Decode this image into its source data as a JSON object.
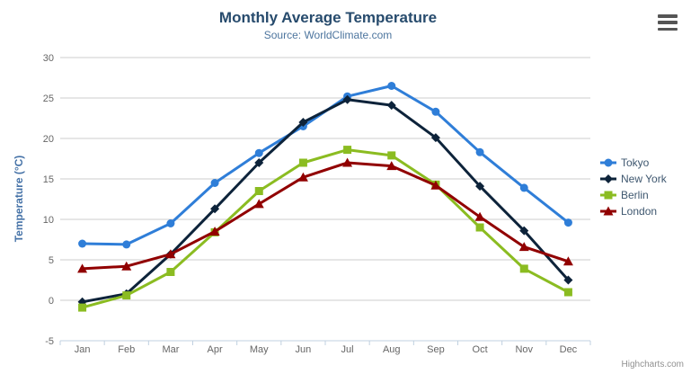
{
  "chart_data": {
    "type": "line",
    "title": "Monthly Average Temperature",
    "subtitle": "Source: WorldClimate.com",
    "categories": [
      "Jan",
      "Feb",
      "Mar",
      "Apr",
      "May",
      "Jun",
      "Jul",
      "Aug",
      "Sep",
      "Oct",
      "Nov",
      "Dec"
    ],
    "xlabel": "",
    "ylabel": "Temperature (°C)",
    "ylim": [
      -5,
      30
    ],
    "ytick_interval": 5,
    "grid": true,
    "legend_position": "right",
    "series": [
      {
        "name": "Tokyo",
        "color": "#2f7ed8",
        "marker": "circle",
        "values": [
          7.0,
          6.9,
          9.5,
          14.5,
          18.2,
          21.5,
          25.2,
          26.5,
          23.3,
          18.3,
          13.9,
          9.6
        ]
      },
      {
        "name": "New York",
        "color": "#0d233a",
        "marker": "diamond",
        "values": [
          -0.2,
          0.8,
          5.7,
          11.3,
          17.0,
          22.0,
          24.8,
          24.1,
          20.1,
          14.1,
          8.6,
          2.5
        ]
      },
      {
        "name": "Berlin",
        "color": "#8bbc21",
        "marker": "square",
        "values": [
          -0.9,
          0.6,
          3.5,
          8.4,
          13.5,
          17.0,
          18.6,
          17.9,
          14.3,
          9.0,
          3.9,
          1.0
        ]
      },
      {
        "name": "London",
        "color": "#910000",
        "marker": "triangle",
        "values": [
          3.9,
          4.2,
          5.7,
          8.5,
          11.9,
          15.2,
          17.0,
          16.6,
          14.2,
          10.3,
          6.6,
          4.8
        ]
      }
    ]
  },
  "credits_label": "Highcharts.com",
  "colors": {
    "title": "#274b6d",
    "subtitle": "#4d759e",
    "yaxis_title": "#4572a7",
    "axis_label": "#666666",
    "legend_text": "#3e576f",
    "grid_line": "#cccccc",
    "axis_line": "#c0d0e0",
    "credits": "#909090",
    "menu_icon": "#555555"
  }
}
